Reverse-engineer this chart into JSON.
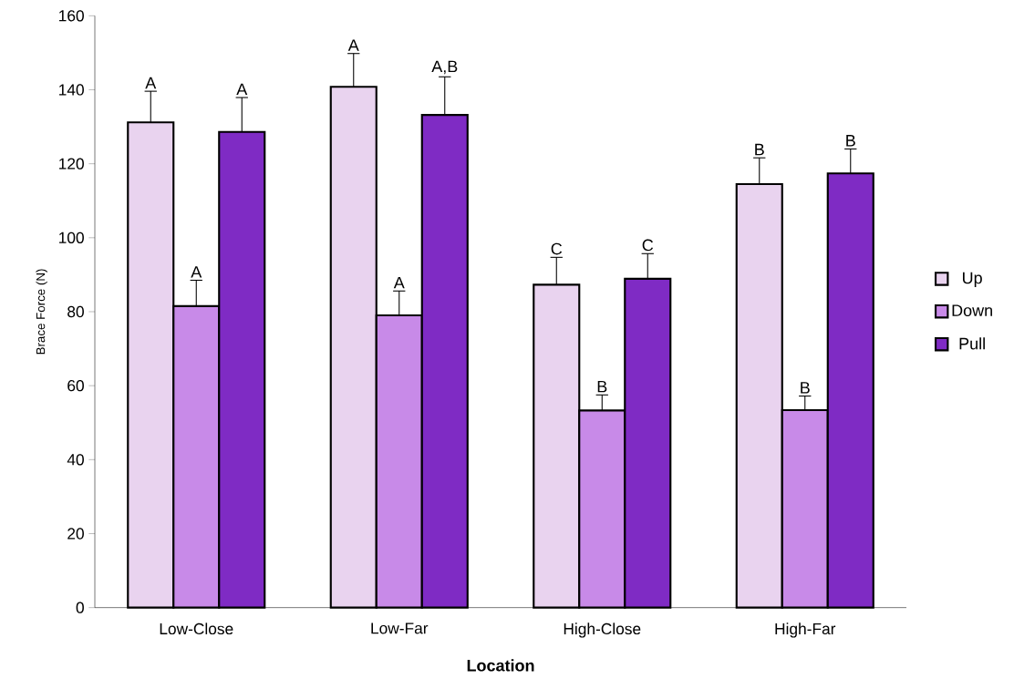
{
  "chart_data": {
    "type": "bar",
    "xlabel": "Location",
    "ylabel": "Brace Force (N)",
    "categories": [
      "Low-Close",
      "Low-Far",
      "High-Close",
      "High-Far"
    ],
    "ylim": [
      0,
      160
    ],
    "yticks": [
      0,
      20,
      40,
      60,
      80,
      100,
      120,
      140,
      160
    ],
    "legend": "right",
    "grid": false,
    "series": [
      {
        "name": "Up",
        "color": "#e9d3ef",
        "values": [
          131.2,
          140.8,
          87.3,
          114.5
        ],
        "errors": [
          8.4,
          9,
          7.4,
          7.1
        ],
        "value_labels": [
          "A",
          "A",
          "C",
          "B"
        ]
      },
      {
        "name": "Down",
        "color": "#c88ae8",
        "values": [
          81.5,
          79.0,
          53.3,
          53.4
        ],
        "errors": [
          7,
          6.6,
          4.2,
          3.8
        ],
        "value_labels": [
          "A",
          "A",
          "B",
          "B"
        ]
      },
      {
        "name": "Pull",
        "color": "#7f2bc4",
        "values": [
          128.6,
          133.2,
          88.9,
          117.4
        ],
        "errors": [
          9.3,
          10.3,
          6.8,
          6.6
        ],
        "value_labels": [
          "A",
          "A,B",
          "C",
          "B"
        ]
      }
    ]
  }
}
